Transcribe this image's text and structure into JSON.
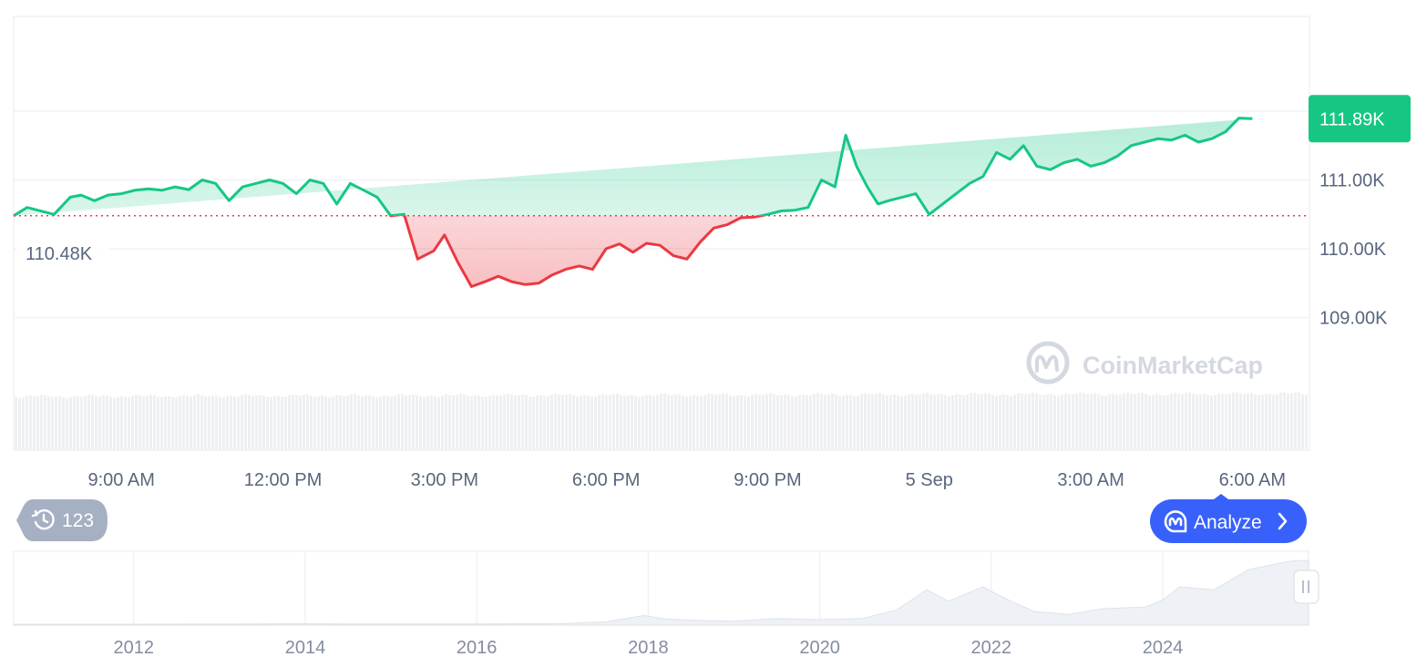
{
  "chart_data": {
    "type": "area",
    "source_watermark": "CoinMarketCap",
    "y_axis": {
      "ticks": [
        "111.00K",
        "110.00K",
        "109.00K"
      ],
      "tick_values": [
        111000,
        110000,
        109000
      ],
      "range": [
        108000,
        112000
      ],
      "position": "right",
      "grid": true
    },
    "x_axis": {
      "ticks": [
        "9:00 AM",
        "12:00 PM",
        "3:00 PM",
        "6:00 PM",
        "9:00 PM",
        "5 Sep",
        "3:00 AM",
        "6:00 AM"
      ],
      "tick_hours": [
        9,
        12,
        15,
        18,
        21,
        24,
        27,
        30
      ],
      "range_hours": [
        7,
        31.06
      ]
    },
    "baseline": {
      "label": "110.48K",
      "value": 110480
    },
    "current_price": {
      "label": "111.89K",
      "value": 111890
    },
    "colors": {
      "up": "#16c784",
      "down": "#ea3943",
      "price_tag": "#16c784",
      "analyze_button": "#3861fb"
    },
    "series_hours": [
      7.0,
      7.25,
      7.75,
      8.05,
      8.25,
      8.5,
      8.75,
      9.0,
      9.25,
      9.5,
      9.75,
      10.0,
      10.25,
      10.5,
      10.75,
      11.0,
      11.25,
      11.5,
      11.75,
      12.0,
      12.25,
      12.5,
      12.75,
      13.0,
      13.25,
      13.5,
      13.75,
      14.0,
      14.25,
      14.5,
      14.8,
      15.0,
      15.25,
      15.5,
      15.75,
      16.0,
      16.25,
      16.5,
      16.75,
      17.0,
      17.25,
      17.5,
      17.75,
      18.0,
      18.25,
      18.5,
      18.75,
      19.0,
      19.25,
      19.5,
      19.75,
      20.0,
      20.25,
      20.5,
      20.75,
      21.0,
      21.25,
      21.5,
      21.75,
      22.0,
      22.25,
      22.45,
      22.65,
      22.85,
      23.05,
      23.25,
      23.5,
      23.75,
      24.0,
      24.25,
      24.5,
      24.75,
      25.0,
      25.25,
      25.5,
      25.75,
      26.0,
      26.25,
      26.5,
      26.75,
      27.0,
      27.25,
      27.5,
      27.75,
      28.0,
      28.25,
      28.5,
      28.75,
      29.0,
      29.25,
      29.5,
      29.75,
      30.0,
      30.25,
      30.5,
      30.75,
      31.06
    ],
    "series_values": [
      110480,
      110600,
      110500,
      110750,
      110780,
      110700,
      110780,
      110800,
      110850,
      110870,
      110850,
      110900,
      110860,
      111000,
      110950,
      110700,
      110900,
      110950,
      111000,
      110950,
      110800,
      111000,
      110950,
      110650,
      110950,
      110850,
      110750,
      110480,
      110500,
      109850,
      109970,
      110200,
      109800,
      109450,
      109520,
      109600,
      109520,
      109480,
      109500,
      109620,
      109700,
      109750,
      109700,
      110000,
      110070,
      109950,
      110080,
      110050,
      109900,
      109850,
      110100,
      110300,
      110350,
      110450,
      110460,
      110500,
      110550,
      110560,
      110600,
      111000,
      110900,
      111650,
      111200,
      110900,
      110650,
      110700,
      110750,
      110800,
      110500,
      110650,
      110800,
      110950,
      111050,
      111400,
      111300,
      111500,
      111200,
      111150,
      111250,
      111300,
      111200,
      111250,
      111350,
      111500,
      111550,
      111600,
      111580,
      111650,
      111550,
      111600,
      111700,
      111900,
      111890
    ],
    "navigator": {
      "ticks": [
        "2012",
        "2014",
        "2016",
        "2018",
        "2020",
        "2022",
        "2024"
      ],
      "tick_years": [
        2012,
        2014,
        2016,
        2018,
        2020,
        2022,
        2024
      ],
      "range_years": [
        2010.6,
        2025.7
      ],
      "series_years": [
        2010.6,
        2012,
        2013,
        2013.9,
        2014.5,
        2016,
        2017,
        2017.5,
        2017.95,
        2018.2,
        2018.5,
        2019,
        2019.5,
        2020,
        2020.5,
        2020.9,
        2021.25,
        2021.5,
        2021.9,
        2022.2,
        2022.5,
        2022.9,
        2023.3,
        2023.8,
        2024.0,
        2024.2,
        2024.6,
        2025.0,
        2025.5,
        2025.7
      ],
      "series_values": [
        0,
        0,
        100,
        800,
        500,
        400,
        1000,
        4000,
        15000,
        9000,
        7000,
        5000,
        10000,
        8000,
        10000,
        25000,
        60000,
        40000,
        65000,
        42000,
        22000,
        17000,
        27000,
        30000,
        42000,
        65000,
        60000,
        95000,
        110000,
        111000
      ]
    }
  },
  "history_badge": {
    "count": "123"
  },
  "analyze_button": {
    "label": "Analyze"
  }
}
